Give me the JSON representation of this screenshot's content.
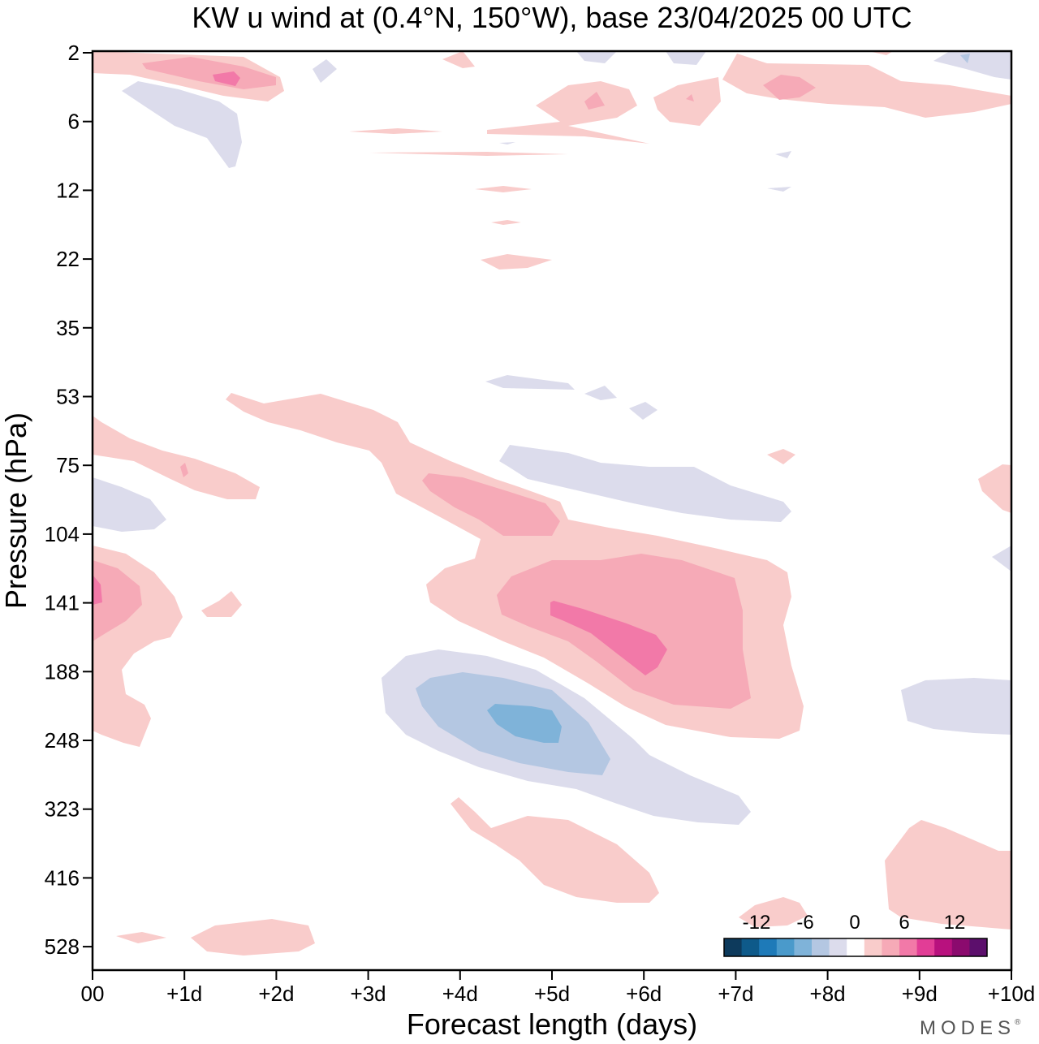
{
  "chart_data": {
    "type": "heatmap",
    "title": "KW u wind at (0.4°N, 150°W),  base 23/04/2025  00 UTC",
    "xlabel": "Forecast length (days)",
    "ylabel": "Pressure (hPa)",
    "x_ticks": [
      "00",
      "+1d",
      "+2d",
      "+3d",
      "+4d",
      "+5d",
      "+6d",
      "+7d",
      "+8d",
      "+9d",
      "+10d"
    ],
    "xlim": [
      0,
      10
    ],
    "y_ticks": [
      "2",
      "6",
      "12",
      "22",
      "35",
      "53",
      "75",
      "104",
      "141",
      "188",
      "248",
      "323",
      "416",
      "528"
    ],
    "y_axis": "pressure, decreasing upward",
    "colorbar": {
      "labels": [
        "-12",
        "-6",
        "0",
        "6",
        "12"
      ],
      "levels": [
        -15,
        -12,
        -9,
        -6,
        -4.5,
        -3,
        -1.5,
        1.5,
        3,
        4.5,
        6,
        9,
        12,
        15
      ],
      "colors": [
        "#0d3a5c",
        "#0e5a8a",
        "#1e7ab8",
        "#4a9acb",
        "#7fb3d9",
        "#b4c7e2",
        "#dcdcec",
        "#ffffff",
        "#f9cccb",
        "#f6aab7",
        "#f279a8",
        "#e23d96",
        "#b8117e",
        "#8b0a6e",
        "#5c0f6c"
      ]
    },
    "features": [
      {
        "sign": "westerly",
        "level": 3,
        "days": [
          0,
          2
        ],
        "hpa": [
          2,
          5
        ]
      },
      {
        "sign": "westerly",
        "level": 9,
        "days": [
          1.3,
          1.6
        ],
        "hpa": [
          3,
          4
        ]
      },
      {
        "sign": "westerly",
        "level": 6,
        "days": [
          4.9,
          6.1
        ],
        "hpa": [
          130,
          190
        ]
      },
      {
        "sign": "westerly",
        "level": 4.5,
        "days": [
          3.5,
          7.1
        ],
        "hpa": [
          65,
          250
        ]
      },
      {
        "sign": "easterly",
        "level": -6,
        "days": [
          4.3,
          5.1
        ],
        "hpa": [
          210,
          250
        ]
      },
      {
        "sign": "easterly",
        "level": -4.5,
        "days": [
          3.5,
          5.7
        ],
        "hpa": [
          180,
          300
        ]
      },
      {
        "sign": "easterly",
        "level": -1.5,
        "days": [
          3.1,
          7.1
        ],
        "hpa": [
          170,
          350
        ]
      },
      {
        "sign": "westerly",
        "level": 1.5,
        "days": [
          0,
          1
        ],
        "hpa": [
          90,
          250
        ]
      },
      {
        "sign": "westerly",
        "level": 1.5,
        "days": [
          4,
          6.1
        ],
        "hpa": [
          330,
          450
        ]
      }
    ]
  },
  "branding": {
    "label": "MODES"
  }
}
